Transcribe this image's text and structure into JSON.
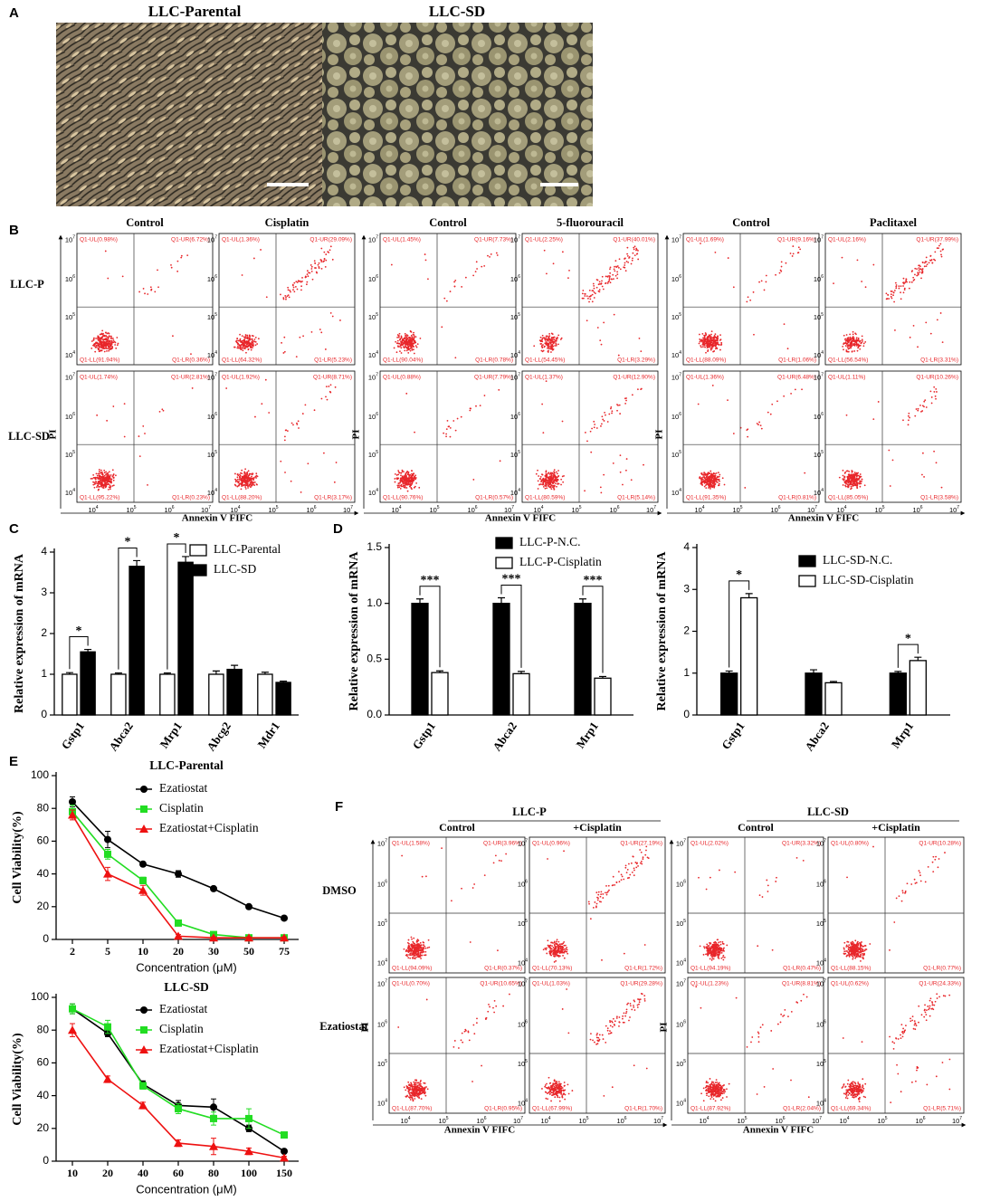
{
  "panel_labels": [
    "A",
    "B",
    "C",
    "D",
    "E",
    "F"
  ],
  "micrographs": {
    "labels": [
      "LLC-Parental",
      "LLC-SD"
    ]
  },
  "flow_ticks": [
    {
      "base": "10",
      "exp": "4"
    },
    {
      "base": "10",
      "exp": "5"
    },
    {
      "base": "10",
      "exp": "6"
    },
    {
      "base": "10",
      "exp": "7"
    }
  ],
  "flow_b": {
    "headers": [
      "Control",
      "Cisplatin",
      "Control",
      "5-fluorouracil",
      "Control",
      "Paclitaxel"
    ],
    "row_labels": [
      "LLC-P",
      "LLC-SD"
    ],
    "y_label": "PI",
    "x_label": "Annexin V FIFC",
    "plots": [
      [
        [
          "Q1-UL(0.98%)",
          "Q1-UR(6.72%)",
          "Q1-LL(91.94%)",
          "Q1-LR(0.36%)"
        ],
        [
          "Q1-UL(1.36%)",
          "Q1-UR(29.09%)",
          "Q1-LL(64.32%)",
          "Q1-LR(5.23%)"
        ],
        [
          "Q1-UL(1.45%)",
          "Q1-UR(7.73%)",
          "Q1-LL(90.04%)",
          "Q1-LR(0.78%)"
        ],
        [
          "Q1-UL(2.25%)",
          "Q1-UR(40.01%)",
          "Q1-LL(54.45%)",
          "Q1-LR(3.29%)"
        ],
        [
          "Q1-UL(1.69%)",
          "Q1-UR(9.16%)",
          "Q1-LL(88.09%)",
          "Q1-LR(1.06%)"
        ],
        [
          "Q1-UL(2.16%)",
          "Q1-UR(37.99%)",
          "Q1-LL(56.54%)",
          "Q1-LR(3.31%)"
        ]
      ],
      [
        [
          "Q1-UL(1.74%)",
          "Q1-UR(2.81%)",
          "Q1-LL(95.22%)",
          "Q1-LR(0.23%)"
        ],
        [
          "Q1-UL(1.92%)",
          "Q1-UR(8.71%)",
          "Q1-LL(88.20%)",
          "Q1-LR(3.17%)"
        ],
        [
          "Q1-UL(0.88%)",
          "Q1-UR(7.79%)",
          "Q1-LL(90.76%)",
          "Q1-LR(0.57%)"
        ],
        [
          "Q1-UL(1.37%)",
          "Q1-UR(12.90%)",
          "Q1-LL(80.59%)",
          "Q1-LR(5.14%)"
        ],
        [
          "Q1-UL(1.36%)",
          "Q1-UR(6.48%)",
          "Q1-LL(91.35%)",
          "Q1-LR(0.81%)"
        ],
        [
          "Q1-UL(1.11%)",
          "Q1-UR(10.26%)",
          "Q1-LL(85.05%)",
          "Q1-LR(3.58%)"
        ]
      ]
    ]
  },
  "flow_f": {
    "groups": [
      "LLC-P",
      "LLC-SD"
    ],
    "headers": [
      "Control",
      "+Cisplatin"
    ],
    "row_labels": [
      "DMSO",
      "Ezatiostat"
    ],
    "y_label": "PI",
    "x_label": "Annexin V FIFC",
    "plots": [
      [
        [
          "Q1-UL(1.58%)",
          "Q1-UR(3.96%)",
          "Q1-LL(94.09%)",
          "Q1-LR(0.37%)"
        ],
        [
          "Q1-UL(0.96%)",
          "Q1-UR(27.19%)",
          "Q1-LL(70.13%)",
          "Q1-LR(1.72%)"
        ],
        [
          "Q1-UL(2.02%)",
          "Q1-UR(3.32%)",
          "Q1-LL(94.19%)",
          "Q1-LR(0.47%)"
        ],
        [
          "Q1-UL(0.80%)",
          "Q1-UR(10.28%)",
          "Q1-LL(88.15%)",
          "Q1-LR(0.77%)"
        ]
      ],
      [
        [
          "Q1-UL(0.70%)",
          "Q1-UR(10.65%)",
          "Q1-LL(87.70%)",
          "Q1-LR(0.95%)"
        ],
        [
          "Q1-UL(1.03%)",
          "Q1-UR(29.28%)",
          "Q1-LL(67.99%)",
          "Q1-LR(1.70%)"
        ],
        [
          "Q1-UL(1.23%)",
          "Q1-UR(8.81%)",
          "Q1-LL(87.92%)",
          "Q1-LR(2.04%)"
        ],
        [
          "Q1-UL(0.62%)",
          "Q1-UR(24.33%)",
          "Q1-LL(69.34%)",
          "Q1-LR(5.71%)"
        ]
      ]
    ]
  },
  "chart_data": [
    {
      "type": "bar",
      "y_label": "Relative expression of mRNA",
      "categories": [
        "Gstp1",
        "Abca2",
        "Mrp1",
        "Abcg2",
        "Mdr1"
      ],
      "series": [
        {
          "name": "LLC-Parental",
          "color": "#ffffff",
          "values": [
            1,
            1,
            1,
            1,
            1
          ],
          "errors": [
            0.04,
            0.03,
            0.03,
            0.08,
            0.05
          ]
        },
        {
          "name": "LLC-SD",
          "color": "#000000",
          "values": [
            1.55,
            3.65,
            3.75,
            1.12,
            0.8
          ],
          "errors": [
            0.06,
            0.14,
            0.14,
            0.1,
            0.03
          ]
        }
      ],
      "significance": [
        "*",
        "*",
        "*",
        null,
        null
      ],
      "ylim": [
        0,
        4
      ],
      "yticks": [
        0,
        1,
        2,
        3,
        4
      ]
    },
    {
      "type": "bar",
      "y_label": "Relative expression of mRNA",
      "categories": [
        "Gstp1",
        "Abca2",
        "Mrp1"
      ],
      "series": [
        {
          "name": "LLC-P-N.C.",
          "color": "#000000",
          "values": [
            1.0,
            1.0,
            1.0
          ],
          "errors": [
            0.04,
            0.05,
            0.04
          ]
        },
        {
          "name": "LLC-P-Cisplatin",
          "color": "#ffffff",
          "values": [
            0.38,
            0.37,
            0.33
          ],
          "errors": [
            0.015,
            0.02,
            0.015
          ]
        }
      ],
      "significance": [
        "***",
        "***",
        "***"
      ],
      "ylim": [
        0,
        1.5
      ],
      "yticks": [
        {
          "value": 0,
          "label": "0.0"
        },
        0.5,
        {
          "value": 1,
          "label": "1.0"
        },
        1.5
      ]
    },
    {
      "type": "bar",
      "y_label": "Relative expression of mRNA",
      "categories": [
        "Gstp1",
        "Abca2",
        "Mrp1"
      ],
      "series": [
        {
          "name": "LLC-SD-N.C.",
          "color": "#000000",
          "values": [
            1.0,
            1.0,
            1.0
          ],
          "errors": [
            0.05,
            0.08,
            0.04
          ]
        },
        {
          "name": "LLC-SD-Cisplatin",
          "color": "#ffffff",
          "values": [
            2.8,
            0.77,
            1.3
          ],
          "errors": [
            0.1,
            0.03,
            0.08
          ]
        }
      ],
      "significance": [
        "*",
        null,
        "*"
      ],
      "ylim": [
        0,
        4
      ],
      "yticks": [
        0,
        1,
        2,
        3,
        4
      ]
    },
    {
      "type": "line",
      "title": "LLC-Parental",
      "y_label": "Cell Viability(%)",
      "x_label": "Concentration (μM)",
      "categories": [
        "2",
        "5",
        "10",
        "20",
        "30",
        "50",
        "75"
      ],
      "series": [
        {
          "name": "Ezatiostat",
          "color": "#000000",
          "marker": "circle",
          "values": [
            84,
            61,
            46,
            40,
            31,
            20,
            13
          ],
          "errors": [
            3,
            5,
            1,
            2,
            1,
            1,
            1
          ]
        },
        {
          "name": "Cisplatin",
          "color": "#22dd22",
          "marker": "square",
          "values": [
            78,
            52,
            36,
            10,
            3,
            1,
            1
          ],
          "errors": [
            4,
            3,
            2,
            1,
            1,
            1,
            1
          ]
        },
        {
          "name": "Ezatiostat+Cisplatin",
          "color": "#ee1111",
          "marker": "triangle",
          "values": [
            76,
            40,
            30,
            2,
            1,
            1,
            1
          ],
          "errors": [
            3,
            4,
            3,
            1,
            0.5,
            0.5,
            0.5
          ]
        }
      ],
      "ylim": [
        0,
        100
      ],
      "yticks": [
        0,
        20,
        40,
        60,
        80,
        100
      ]
    },
    {
      "type": "line",
      "title": "LLC-SD",
      "y_label": "Cell Viability(%)",
      "x_label": "Concentration (μM)",
      "categories": [
        "10",
        "20",
        "40",
        "60",
        "80",
        "100",
        "150"
      ],
      "series": [
        {
          "name": "Ezatiostat",
          "color": "#000000",
          "marker": "circle",
          "values": [
            93,
            78,
            47,
            34,
            33,
            20,
            6
          ],
          "errors": [
            3,
            2,
            2,
            3,
            5,
            2,
            1
          ]
        },
        {
          "name": "Cisplatin",
          "color": "#22dd22",
          "marker": "square",
          "values": [
            93,
            82,
            46,
            32,
            26,
            26,
            16
          ],
          "errors": [
            3,
            4,
            2,
            3,
            4,
            6,
            1
          ]
        },
        {
          "name": "Ezatiostat+Cisplatin",
          "color": "#ee1111",
          "marker": "triangle",
          "values": [
            80,
            50,
            34,
            11,
            9,
            6,
            2
          ],
          "errors": [
            4,
            2,
            2,
            2,
            5,
            2,
            1
          ]
        }
      ],
      "ylim": [
        0,
        100
      ],
      "yticks": [
        0,
        20,
        40,
        60,
        80,
        100
      ]
    }
  ]
}
